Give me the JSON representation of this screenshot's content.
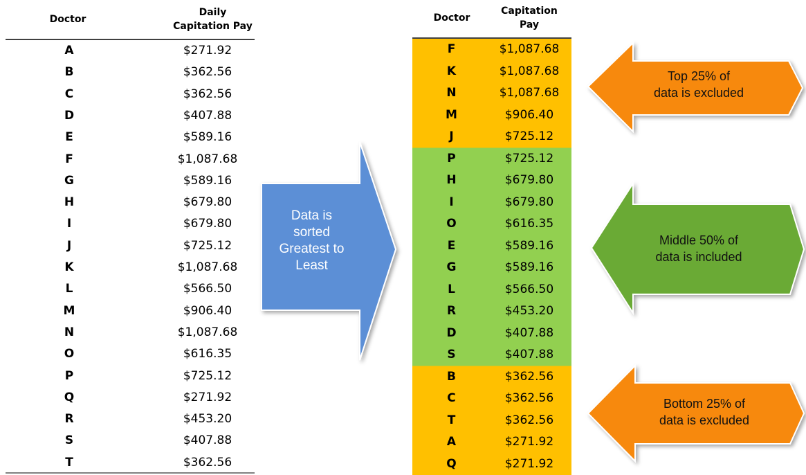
{
  "left_table": {
    "headers": [
      "Doctor",
      "Daily Capitation Pay"
    ],
    "rows": [
      [
        "A",
        "$271.92"
      ],
      [
        "B",
        "$362.56"
      ],
      [
        "C",
        "$362.56"
      ],
      [
        "D",
        "$407.88"
      ],
      [
        "E",
        "$589.16"
      ],
      [
        "F",
        "$1,087.68"
      ],
      [
        "G",
        "$589.16"
      ],
      [
        "H",
        "$679.80"
      ],
      [
        "I",
        "$679.80"
      ],
      [
        "J",
        "$725.12"
      ],
      [
        "K",
        "$1,087.68"
      ],
      [
        "L",
        "$566.50"
      ],
      [
        "M",
        "$906.40"
      ],
      [
        "N",
        "$1,087.68"
      ],
      [
        "O",
        "$616.35"
      ],
      [
        "P",
        "$725.12"
      ],
      [
        "Q",
        "$271.92"
      ],
      [
        "R",
        "$453.20"
      ],
      [
        "S",
        "$407.88"
      ],
      [
        "T",
        "$362.56"
      ]
    ]
  },
  "sort_arrow": {
    "lines": [
      "Data is",
      "sorted",
      "Greatest to",
      "Least"
    ],
    "color": "#5b8fd6"
  },
  "right_table": {
    "headers": [
      "Doctor",
      "Capitation Pay"
    ],
    "groups": [
      {
        "color": "#ffc000",
        "rows": [
          [
            "F",
            "$1,087.68"
          ],
          [
            "K",
            "$1,087.68"
          ],
          [
            "N",
            "$1,087.68"
          ],
          [
            "M",
            "$906.40"
          ],
          [
            "J",
            "$725.12"
          ]
        ]
      },
      {
        "color": "#92d050",
        "rows": [
          [
            "P",
            "$725.12"
          ],
          [
            "H",
            "$679.80"
          ],
          [
            "I",
            "$679.80"
          ],
          [
            "O",
            "$616.35"
          ],
          [
            "E",
            "$589.16"
          ],
          [
            "G",
            "$589.16"
          ],
          [
            "L",
            "$566.50"
          ],
          [
            "R",
            "$453.20"
          ],
          [
            "D",
            "$407.88"
          ],
          [
            "S",
            "$407.88"
          ]
        ]
      },
      {
        "color": "#ffc000",
        "rows": [
          [
            "B",
            "$362.56"
          ],
          [
            "C",
            "$362.56"
          ],
          [
            "T",
            "$362.56"
          ],
          [
            "A",
            "$271.92"
          ],
          [
            "Q",
            "$271.92"
          ]
        ]
      }
    ]
  },
  "callouts": [
    {
      "lines": [
        "Top 25% of",
        "data is excluded"
      ],
      "color": "#f7890c"
    },
    {
      "lines": [
        "Middle 50% of",
        "data is included"
      ],
      "color": "#6aaa34"
    },
    {
      "lines": [
        "Bottom 25% of",
        "data is excluded"
      ],
      "color": "#f7890c"
    }
  ]
}
